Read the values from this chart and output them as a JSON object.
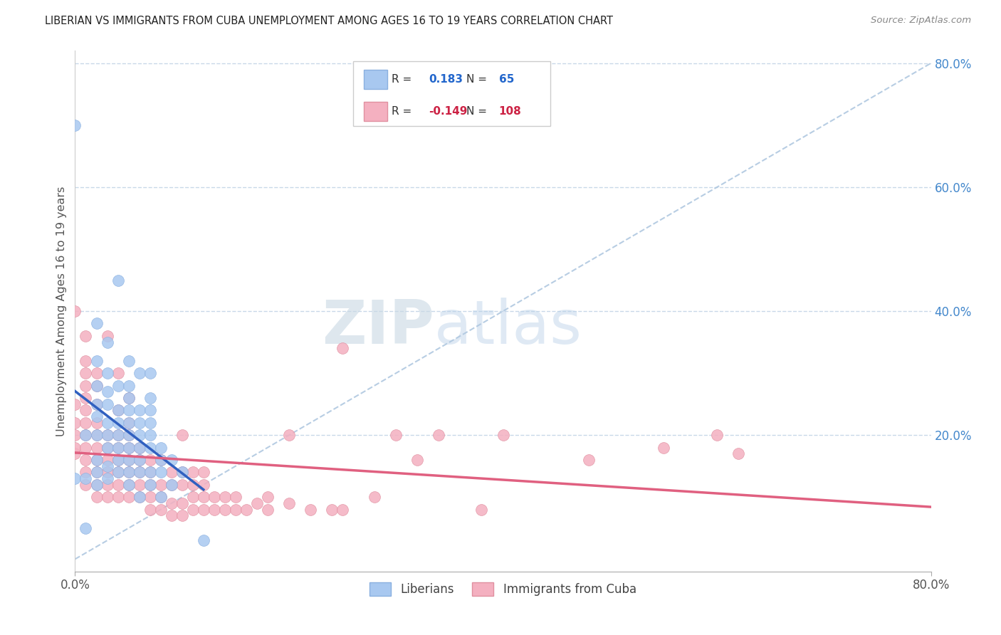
{
  "title": "LIBERIAN VS IMMIGRANTS FROM CUBA UNEMPLOYMENT AMONG AGES 16 TO 19 YEARS CORRELATION CHART",
  "source": "Source: ZipAtlas.com",
  "ylabel": "Unemployment Among Ages 16 to 19 years",
  "right_yticks": [
    "80.0%",
    "60.0%",
    "40.0%",
    "20.0%"
  ],
  "right_ytick_vals": [
    0.8,
    0.6,
    0.4,
    0.2
  ],
  "xmin": 0.0,
  "xmax": 0.8,
  "ymin": -0.02,
  "ymax": 0.82,
  "liberian_color": "#a8c8f0",
  "liberian_color_edge": "#8ab0e0",
  "cuba_color": "#f4b0c0",
  "cuba_color_edge": "#e090a0",
  "liberian_line_color": "#3060c0",
  "cuba_line_color": "#e06080",
  "diag_color": "#b0c8e0",
  "liberian_R": 0.183,
  "liberian_N": 65,
  "cuba_R": -0.149,
  "cuba_N": 108,
  "watermark_zip": "ZIP",
  "watermark_atlas": "atlas",
  "legend_liberian": "Liberians",
  "legend_cuba": "Immigrants from Cuba",
  "liberian_scatter_x": [
    0.0,
    0.0,
    0.01,
    0.01,
    0.01,
    0.02,
    0.02,
    0.02,
    0.02,
    0.02,
    0.02,
    0.02,
    0.02,
    0.02,
    0.03,
    0.03,
    0.03,
    0.03,
    0.03,
    0.03,
    0.03,
    0.03,
    0.03,
    0.04,
    0.04,
    0.04,
    0.04,
    0.04,
    0.04,
    0.04,
    0.04,
    0.05,
    0.05,
    0.05,
    0.05,
    0.05,
    0.05,
    0.05,
    0.05,
    0.05,
    0.05,
    0.06,
    0.06,
    0.06,
    0.06,
    0.06,
    0.06,
    0.06,
    0.06,
    0.07,
    0.07,
    0.07,
    0.07,
    0.07,
    0.07,
    0.07,
    0.07,
    0.08,
    0.08,
    0.08,
    0.08,
    0.09,
    0.09,
    0.1,
    0.12
  ],
  "liberian_scatter_y": [
    0.7,
    0.13,
    0.05,
    0.13,
    0.2,
    0.12,
    0.14,
    0.16,
    0.2,
    0.23,
    0.25,
    0.28,
    0.32,
    0.38,
    0.13,
    0.15,
    0.18,
    0.2,
    0.22,
    0.25,
    0.27,
    0.3,
    0.35,
    0.14,
    0.16,
    0.18,
    0.2,
    0.22,
    0.24,
    0.28,
    0.45,
    0.12,
    0.14,
    0.16,
    0.18,
    0.2,
    0.22,
    0.24,
    0.26,
    0.28,
    0.32,
    0.1,
    0.14,
    0.16,
    0.18,
    0.2,
    0.22,
    0.24,
    0.3,
    0.12,
    0.14,
    0.18,
    0.2,
    0.22,
    0.24,
    0.26,
    0.3,
    0.1,
    0.14,
    0.16,
    0.18,
    0.12,
    0.16,
    0.14,
    0.03
  ],
  "cuba_scatter_x": [
    0.0,
    0.0,
    0.0,
    0.0,
    0.0,
    0.0,
    0.01,
    0.01,
    0.01,
    0.01,
    0.01,
    0.01,
    0.01,
    0.01,
    0.01,
    0.01,
    0.01,
    0.01,
    0.02,
    0.02,
    0.02,
    0.02,
    0.02,
    0.02,
    0.02,
    0.02,
    0.02,
    0.02,
    0.03,
    0.03,
    0.03,
    0.03,
    0.03,
    0.03,
    0.03,
    0.04,
    0.04,
    0.04,
    0.04,
    0.04,
    0.04,
    0.04,
    0.04,
    0.05,
    0.05,
    0.05,
    0.05,
    0.05,
    0.05,
    0.05,
    0.05,
    0.06,
    0.06,
    0.06,
    0.06,
    0.06,
    0.07,
    0.07,
    0.07,
    0.07,
    0.07,
    0.08,
    0.08,
    0.08,
    0.08,
    0.09,
    0.09,
    0.09,
    0.09,
    0.1,
    0.1,
    0.1,
    0.1,
    0.1,
    0.11,
    0.11,
    0.11,
    0.11,
    0.12,
    0.12,
    0.12,
    0.12,
    0.13,
    0.13,
    0.14,
    0.14,
    0.15,
    0.15,
    0.16,
    0.17,
    0.18,
    0.18,
    0.2,
    0.2,
    0.22,
    0.24,
    0.25,
    0.25,
    0.28,
    0.3,
    0.32,
    0.34,
    0.38,
    0.4,
    0.48,
    0.55,
    0.6,
    0.62
  ],
  "cuba_scatter_y": [
    0.17,
    0.18,
    0.2,
    0.22,
    0.25,
    0.4,
    0.12,
    0.14,
    0.16,
    0.18,
    0.2,
    0.22,
    0.24,
    0.26,
    0.28,
    0.3,
    0.32,
    0.36,
    0.1,
    0.12,
    0.14,
    0.16,
    0.18,
    0.2,
    0.22,
    0.25,
    0.28,
    0.3,
    0.1,
    0.12,
    0.14,
    0.16,
    0.18,
    0.2,
    0.36,
    0.1,
    0.12,
    0.14,
    0.16,
    0.18,
    0.2,
    0.24,
    0.3,
    0.1,
    0.12,
    0.14,
    0.16,
    0.18,
    0.2,
    0.22,
    0.26,
    0.1,
    0.12,
    0.14,
    0.16,
    0.18,
    0.08,
    0.1,
    0.12,
    0.14,
    0.16,
    0.08,
    0.1,
    0.12,
    0.16,
    0.07,
    0.09,
    0.12,
    0.14,
    0.07,
    0.09,
    0.12,
    0.14,
    0.2,
    0.08,
    0.1,
    0.12,
    0.14,
    0.08,
    0.1,
    0.12,
    0.14,
    0.08,
    0.1,
    0.08,
    0.1,
    0.08,
    0.1,
    0.08,
    0.09,
    0.08,
    0.1,
    0.09,
    0.2,
    0.08,
    0.08,
    0.08,
    0.34,
    0.1,
    0.2,
    0.16,
    0.2,
    0.08,
    0.2,
    0.16,
    0.18,
    0.2,
    0.17
  ]
}
